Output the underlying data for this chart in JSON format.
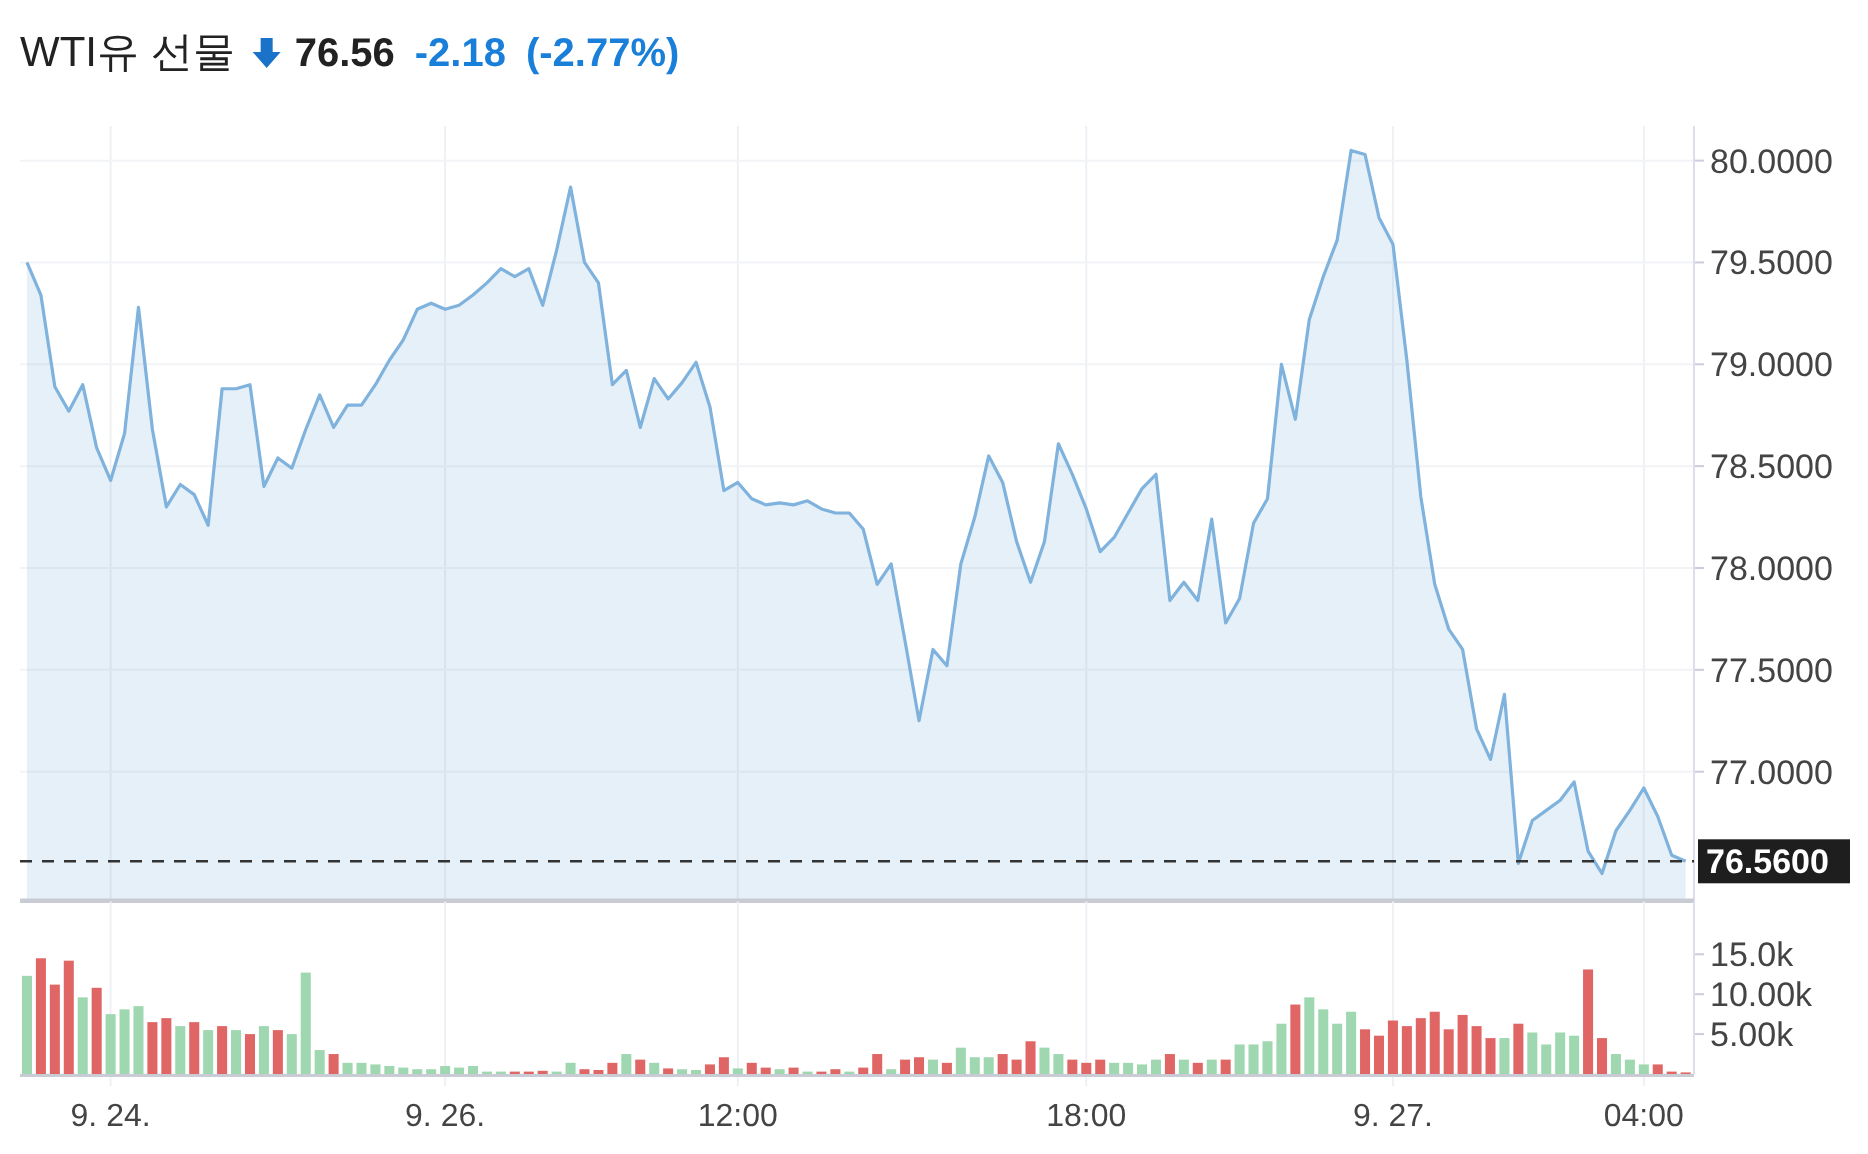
{
  "chart_data": [
    {
      "type": "area",
      "title": "WTI유 선물",
      "annotations": [
        "76.56",
        "-2.18",
        "(-2.77%)"
      ],
      "categories": [
        null,
        null,
        null,
        null,
        null,
        null,
        null,
        null,
        null,
        null,
        null,
        null,
        null,
        null,
        null,
        null,
        null,
        null,
        null,
        null,
        null,
        null,
        null,
        null,
        null,
        null,
        null,
        null,
        null,
        null,
        null,
        null,
        null,
        null,
        null,
        null,
        null,
        null,
        null,
        null,
        null,
        null,
        null,
        null,
        null,
        null,
        null,
        null,
        null,
        null,
        null,
        null,
        null,
        null,
        null,
        null,
        null,
        null,
        null,
        null,
        null,
        null,
        null,
        null,
        null,
        null,
        null,
        null,
        null,
        null,
        null,
        null,
        null,
        null,
        null,
        null,
        null,
        null,
        null,
        null,
        null,
        null,
        null,
        null,
        null,
        null,
        null,
        null,
        null,
        null,
        null,
        null,
        null,
        null,
        null,
        null,
        null,
        null,
        null,
        null,
        null,
        null,
        null,
        null,
        null,
        null,
        null,
        null,
        null,
        null,
        null,
        null,
        null,
        null,
        null,
        null,
        null,
        null,
        null,
        null
      ],
      "series": [
        {
          "color": "#7fb2dc",
          "values": [
            79.5,
            79.34,
            78.89,
            78.77,
            78.9,
            78.59,
            78.43,
            78.66,
            79.28,
            78.68,
            78.3,
            78.41,
            78.36,
            78.21,
            78.88,
            78.88,
            78.9,
            78.4,
            78.54,
            78.49,
            78.68,
            78.85,
            78.69,
            78.8,
            78.8,
            78.9,
            79.02,
            79.12,
            79.27,
            79.3,
            79.27,
            79.29,
            79.34,
            79.4,
            79.47,
            79.43,
            79.47,
            79.29,
            79.56,
            79.87,
            79.5,
            79.4,
            78.9,
            78.97,
            78.69,
            78.93,
            78.83,
            78.91,
            79.01,
            78.79,
            78.38,
            78.42,
            78.34,
            78.31,
            78.32,
            78.31,
            78.33,
            78.29,
            78.27,
            78.27,
            78.19,
            77.92,
            78.02,
            77.64,
            77.25,
            77.6,
            77.52,
            78.02,
            78.25,
            78.55,
            78.42,
            78.13,
            77.93,
            78.13,
            78.61,
            78.46,
            78.29,
            78.08,
            78.15,
            78.27,
            78.39,
            78.46,
            77.84,
            77.93,
            77.84,
            78.24,
            77.73,
            77.85,
            78.22,
            78.34,
            79.0,
            78.73,
            79.22,
            79.43,
            79.61,
            80.05,
            80.03,
            79.72,
            79.59,
            79.02,
            78.35,
            77.92,
            77.7,
            77.6,
            77.21,
            77.06,
            77.38,
            76.55,
            76.76,
            76.81,
            76.86,
            76.95,
            76.61,
            76.5,
            76.71,
            76.81,
            76.92,
            76.78,
            76.59,
            76.56
          ]
        }
      ],
      "ylim": [
        76.37,
        80.17
      ],
      "yticks": [
        {
          "value": 77,
          "label": "77.0000"
        },
        {
          "value": 77.5,
          "label": "77.5000"
        },
        {
          "value": 78,
          "label": "78.0000"
        },
        {
          "value": 78.5,
          "label": "78.5000"
        },
        {
          "value": 79,
          "label": "79.0000"
        },
        {
          "value": 79.5,
          "label": "79.5000"
        },
        {
          "value": 80,
          "label": "80.0000"
        }
      ],
      "ref_lines": [
        {
          "axis": "y",
          "value": 76.56,
          "label": "76.5600",
          "color": "#333333",
          "line_style": "dashed"
        }
      ],
      "grid": true,
      "tick_labels": "y"
    },
    {
      "type": "bar",
      "categories": [
        null,
        null,
        null,
        null,
        null,
        null,
        "9. 24.",
        null,
        null,
        null,
        null,
        null,
        null,
        null,
        null,
        null,
        null,
        null,
        null,
        null,
        null,
        null,
        null,
        null,
        null,
        null,
        null,
        null,
        null,
        null,
        "9. 26.",
        null,
        null,
        null,
        null,
        null,
        null,
        null,
        null,
        null,
        null,
        null,
        null,
        null,
        null,
        null,
        null,
        null,
        null,
        null,
        null,
        "12:00",
        null,
        null,
        null,
        null,
        null,
        null,
        null,
        null,
        null,
        null,
        null,
        null,
        null,
        null,
        null,
        null,
        null,
        null,
        null,
        null,
        null,
        null,
        null,
        null,
        "18:00",
        null,
        null,
        null,
        null,
        null,
        null,
        null,
        null,
        null,
        null,
        null,
        null,
        null,
        null,
        null,
        null,
        null,
        null,
        null,
        null,
        null,
        "9. 27.",
        null,
        null,
        null,
        null,
        null,
        null,
        null,
        null,
        null,
        null,
        null,
        null,
        null,
        null,
        null,
        null,
        null,
        "04:00",
        null,
        null,
        null
      ],
      "values": [
        12300,
        14500,
        11200,
        14200,
        9600,
        10800,
        7500,
        8100,
        8500,
        6500,
        7000,
        6000,
        6500,
        5500,
        6000,
        5500,
        5000,
        6000,
        5500,
        5000,
        12700,
        3000,
        2500,
        1400,
        1400,
        1200,
        1000,
        800,
        600,
        600,
        1000,
        800,
        1000,
        300,
        300,
        300,
        300,
        400,
        300,
        1400,
        600,
        500,
        1400,
        2500,
        1800,
        1400,
        700,
        600,
        500,
        1200,
        2100,
        700,
        1400,
        800,
        600,
        800,
        300,
        300,
        600,
        300,
        800,
        2500,
        600,
        1800,
        2100,
        1800,
        1400,
        3300,
        2100,
        2100,
        2500,
        1800,
        4100,
        3300,
        2500,
        1800,
        1400,
        1800,
        1400,
        1400,
        1200,
        1800,
        2500,
        1800,
        1400,
        1800,
        1800,
        3700,
        3700,
        4100,
        6300,
        8700,
        9600,
        8100,
        6300,
        7800,
        5600,
        4800,
        6700,
        6000,
        7000,
        7800,
        5600,
        7400,
        6000,
        4500,
        4500,
        6300,
        5200,
        3700,
        5200,
        4800,
        13100,
        4500,
        2500,
        1800,
        1200,
        1200,
        300,
        200
      ],
      "colors": [
        "#9fd8b0",
        "#e06666",
        "#e06666",
        "#e06666",
        "#9fd8b0",
        "#e06666",
        "#9fd8b0",
        "#9fd8b0",
        "#9fd8b0",
        "#e06666",
        "#e06666",
        "#9fd8b0",
        "#e06666",
        "#9fd8b0",
        "#e06666",
        "#9fd8b0",
        "#e06666",
        "#9fd8b0",
        "#e06666",
        "#9fd8b0",
        "#9fd8b0",
        "#9fd8b0",
        "#e06666",
        "#9fd8b0",
        "#9fd8b0",
        "#9fd8b0",
        "#9fd8b0",
        "#9fd8b0",
        "#9fd8b0",
        "#9fd8b0",
        "#9fd8b0",
        "#9fd8b0",
        "#9fd8b0",
        "#9fd8b0",
        "#9fd8b0",
        "#e06666",
        "#e06666",
        "#e06666",
        "#9fd8b0",
        "#9fd8b0",
        "#e06666",
        "#e06666",
        "#e06666",
        "#9fd8b0",
        "#e06666",
        "#9fd8b0",
        "#e06666",
        "#9fd8b0",
        "#9fd8b0",
        "#e06666",
        "#e06666",
        "#9fd8b0",
        "#e06666",
        "#e06666",
        "#9fd8b0",
        "#e06666",
        "#9fd8b0",
        "#e06666",
        "#e06666",
        "#9fd8b0",
        "#e06666",
        "#e06666",
        "#9fd8b0",
        "#e06666",
        "#e06666",
        "#9fd8b0",
        "#e06666",
        "#9fd8b0",
        "#9fd8b0",
        "#9fd8b0",
        "#e06666",
        "#e06666",
        "#e06666",
        "#9fd8b0",
        "#9fd8b0",
        "#e06666",
        "#e06666",
        "#e06666",
        "#9fd8b0",
        "#9fd8b0",
        "#9fd8b0",
        "#9fd8b0",
        "#e06666",
        "#9fd8b0",
        "#e06666",
        "#9fd8b0",
        "#e06666",
        "#9fd8b0",
        "#9fd8b0",
        "#9fd8b0",
        "#9fd8b0",
        "#e06666",
        "#9fd8b0",
        "#9fd8b0",
        "#9fd8b0",
        "#9fd8b0",
        "#e06666",
        "#e06666",
        "#e06666",
        "#e06666",
        "#e06666",
        "#e06666",
        "#e06666",
        "#e06666",
        "#e06666",
        "#e06666",
        "#9fd8b0",
        "#e06666",
        "#9fd8b0",
        "#9fd8b0",
        "#9fd8b0",
        "#9fd8b0",
        "#e06666",
        "#e06666",
        "#9fd8b0",
        "#9fd8b0",
        "#9fd8b0",
        "#e06666",
        "#e06666",
        "#e06666"
      ],
      "ylim": [
        0,
        21800
      ],
      "yticks": [
        {
          "value": 5000,
          "label": "5.00k"
        },
        {
          "value": 10000,
          "label": "10.00k"
        },
        {
          "value": 15000,
          "label": "15.0k"
        }
      ],
      "grid": "x"
    }
  ]
}
